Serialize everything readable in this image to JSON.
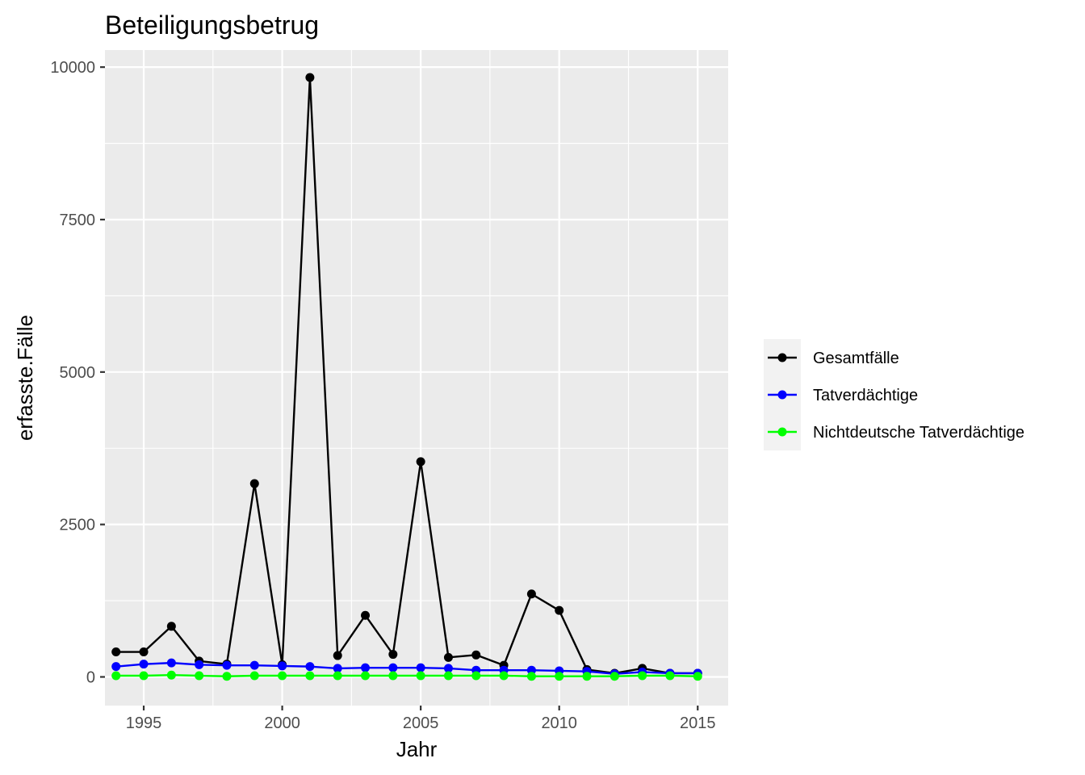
{
  "chart_data": {
    "type": "line",
    "title": "Beteiligungsbetrug",
    "xlabel": "Jahr",
    "ylabel": "erfasste.Fälle",
    "xlim": [
      1993.6,
      2016.1
    ],
    "ylim": [
      -470,
      10280
    ],
    "x_ticks": [
      1995,
      2000,
      2005,
      2010,
      2015
    ],
    "x_minor_ticks": [
      1997.5,
      2002.5,
      2007.5,
      2012.5
    ],
    "y_ticks": [
      0,
      2500,
      5000,
      7500,
      10000
    ],
    "y_minor_ticks": [
      1250,
      3750,
      6250,
      8750
    ],
    "x_tick_labels": [
      "1995",
      "2000",
      "2005",
      "2010",
      "2015"
    ],
    "y_tick_labels": [
      "0",
      "2500",
      "5000",
      "7500",
      "10000"
    ],
    "grid": true,
    "legend_position": "right",
    "x": [
      1994,
      1995,
      1996,
      1997,
      1998,
      1999,
      2000,
      2001,
      2002,
      2003,
      2004,
      2005,
      2006,
      2007,
      2008,
      2009,
      2010,
      2011,
      2012,
      2013,
      2014,
      2015
    ],
    "series": [
      {
        "name": "Gesamtfälle",
        "color": "#000000",
        "values": [
          410,
          410,
          830,
          260,
          210,
          3170,
          200,
          9830,
          350,
          1010,
          370,
          3530,
          320,
          360,
          190,
          1360,
          1090,
          120,
          60,
          140,
          60,
          60
        ]
      },
      {
        "name": "Tatverdächtige",
        "color": "#0000ff",
        "values": [
          170,
          210,
          230,
          200,
          190,
          190,
          180,
          170,
          140,
          150,
          150,
          150,
          140,
          110,
          110,
          110,
          100,
          90,
          50,
          80,
          60,
          60
        ]
      },
      {
        "name": "Nichtdeutsche Tatverdächtige",
        "color": "#00ff00",
        "values": [
          20,
          20,
          30,
          20,
          10,
          20,
          20,
          20,
          20,
          20,
          20,
          20,
          20,
          20,
          20,
          10,
          10,
          10,
          10,
          20,
          20,
          10
        ]
      }
    ]
  },
  "colors": {
    "panel_background": "#ebebeb",
    "grid_major": "#ffffff",
    "legend_key_background": "#f2f2f2"
  }
}
